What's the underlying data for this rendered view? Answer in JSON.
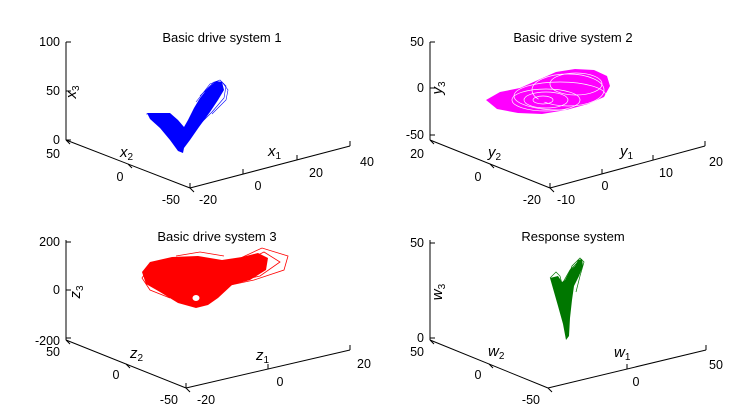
{
  "chart_data": [
    {
      "type": "line3d",
      "title": "Basic  drive system 1",
      "xlabel": "x",
      "xlabel_sub": "1",
      "ylabel": "x",
      "ylabel_sub": "2",
      "zlabel": "x",
      "zlabel_sub": "3",
      "xticks": [
        "-20",
        "0",
        "20",
        "40"
      ],
      "yticks": [
        "50",
        "0",
        "-50"
      ],
      "zticks": [
        "100",
        "50",
        "0"
      ],
      "xlim": [
        -20,
        40
      ],
      "ylim": [
        -50,
        50
      ],
      "zlim": [
        0,
        100
      ],
      "color": "#0000ff",
      "grid": false
    },
    {
      "type": "line3d",
      "title": "Basic  drive system 2",
      "xlabel": "y",
      "xlabel_sub": "1",
      "ylabel": "y",
      "ylabel_sub": "2",
      "zlabel": "y",
      "zlabel_sub": "3",
      "xticks": [
        "-10",
        "0",
        "10",
        "20"
      ],
      "yticks": [
        "20",
        "0",
        "-20"
      ],
      "zticks": [
        "50",
        "0",
        "-50"
      ],
      "xlim": [
        -10,
        20
      ],
      "ylim": [
        -20,
        20
      ],
      "zlim": [
        -50,
        50
      ],
      "color": "#ff00ff",
      "grid": false
    },
    {
      "type": "line3d",
      "title": "Basic  drive system 3",
      "xlabel": "z",
      "xlabel_sub": "1",
      "ylabel": "z",
      "ylabel_sub": "2",
      "zlabel": "z",
      "zlabel_sub": "3",
      "xticks": [
        "-20",
        "0",
        "20"
      ],
      "yticks": [
        "50",
        "0",
        "-50"
      ],
      "zticks": [
        "200",
        "0",
        "-200"
      ],
      "xlim": [
        -20,
        20
      ],
      "ylim": [
        -50,
        50
      ],
      "zlim": [
        -200,
        200
      ],
      "color": "#ff0000",
      "grid": false
    },
    {
      "type": "line3d",
      "title": "Response system",
      "xlabel": "w",
      "xlabel_sub": "1",
      "ylabel": "w",
      "ylabel_sub": "2",
      "zlabel": "w",
      "zlabel_sub": "3",
      "xticks": [
        "0",
        "50"
      ],
      "yticks": [
        "50",
        "0",
        "-50"
      ],
      "zticks": [
        "50",
        "0"
      ],
      "xlim": [
        -50,
        50
      ],
      "ylim": [
        -50,
        50
      ],
      "zlim": [
        0,
        50
      ],
      "color": "#007700",
      "grid": false
    }
  ]
}
